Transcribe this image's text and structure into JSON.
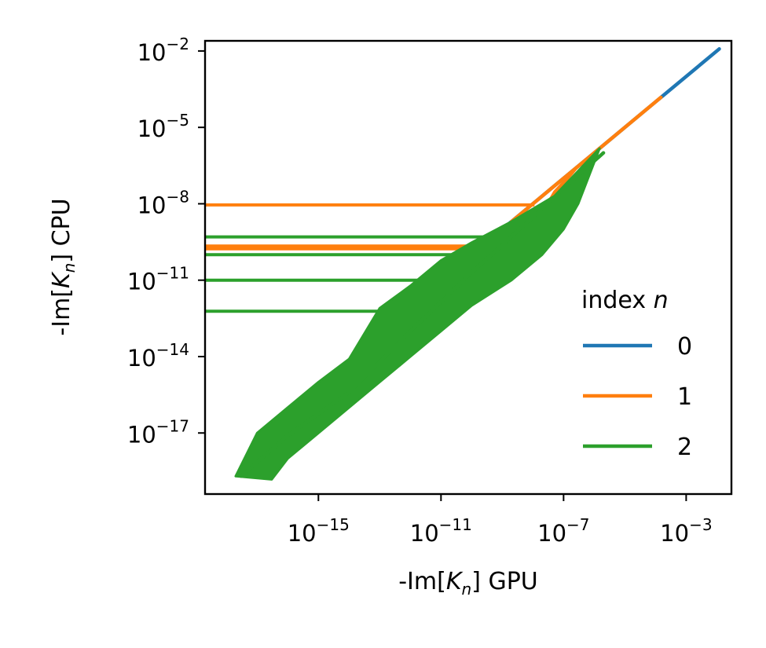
{
  "chart_data": {
    "type": "line",
    "xlabel": "-Im[K_n] GPU",
    "ylabel": "-Im[K_n] CPU",
    "x_scale": "log",
    "y_scale": "log",
    "xlim": [
      2e-19,
      0.03
    ],
    "ylim": [
      4e-20,
      0.025
    ],
    "x_ticks": [
      {
        "value": 1e-15,
        "base": "10",
        "exp": "−15"
      },
      {
        "value": 1e-11,
        "base": "10",
        "exp": "−11"
      },
      {
        "value": 1e-07,
        "base": "10",
        "exp": "−7"
      },
      {
        "value": 0.001,
        "base": "10",
        "exp": "−3"
      }
    ],
    "y_ticks": [
      {
        "value": 0.01,
        "base": "10",
        "exp": "−2"
      },
      {
        "value": 1e-05,
        "base": "10",
        "exp": "−5"
      },
      {
        "value": 1e-08,
        "base": "10",
        "exp": "−8"
      },
      {
        "value": 1e-11,
        "base": "10",
        "exp": "−11"
      },
      {
        "value": 1e-14,
        "base": "10",
        "exp": "−14"
      },
      {
        "value": 1e-17,
        "base": "10",
        "exp": "−17"
      }
    ],
    "grid": false,
    "legend": {
      "title_text": "index ",
      "title_var": "n",
      "placement": "right"
    },
    "series": [
      {
        "name": "0",
        "color": "#1f77b4",
        "points": [
          [
            2e-10,
            2e-10
          ],
          [
            3e-09,
            3e-09
          ],
          [
            4e-08,
            4e-08
          ],
          [
            5e-07,
            5e-07
          ],
          [
            6e-06,
            6e-06
          ],
          [
            0.0001,
            0.0001
          ],
          [
            0.002,
            0.002
          ],
          [
            0.012,
            0.012
          ]
        ]
      },
      {
        "name": "1",
        "color": "#ff7f0e",
        "points": [
          [
            2e-09,
            2e-09
          ],
          [
            4e-08,
            4e-08
          ],
          [
            3e-07,
            3e-07
          ],
          [
            2e-06,
            2e-06
          ],
          [
            2e-05,
            2e-05
          ],
          [
            0.00015,
            0.00015
          ]
        ],
        "plateaus": [
          {
            "y": 9e-09,
            "x_start": 2e-19,
            "x_end": 1e-08,
            "x_end_y": 1e-08
          },
          {
            "y": 2.2e-10,
            "x_start": 2e-19,
            "x_end": 3e-09,
            "x_end_y": 3e-09
          },
          {
            "y": 1.7e-10,
            "x_start": 2e-19,
            "x_end": 2e-09,
            "x_end_y": 2e-09
          }
        ],
        "band": [
          [
            2e-11,
            2e-11
          ],
          [
            1e-09,
            1e-10
          ],
          [
            1e-08,
            1e-09
          ],
          [
            5e-08,
            3e-08
          ],
          [
            3e-07,
            3e-07
          ],
          [
            1e-07,
            6e-08
          ],
          [
            1e-08,
            3e-09
          ],
          [
            1e-09,
            8e-11
          ],
          [
            1e-10,
            1e-11
          ]
        ]
      },
      {
        "name": "2",
        "color": "#2ca02c",
        "points": [
          [
            3e-18,
            2e-19
          ],
          [
            1e-16,
            8e-18
          ],
          [
            1e-14,
            4e-16
          ],
          [
            1e-12,
            1e-13
          ],
          [
            1e-10,
            2e-11
          ],
          [
            1e-08,
            3e-09
          ],
          [
            1e-07,
            4e-08
          ],
          [
            2e-06,
            1e-06
          ]
        ],
        "plateaus": [
          {
            "y": 5e-10,
            "x_start": 2e-19,
            "x_end": 4e-10,
            "x_end_y": 4e-10
          },
          {
            "y": 1e-10,
            "x_start": 2e-19,
            "x_end": 1e-10,
            "x_end_y": 1e-10
          },
          {
            "y": 1e-11,
            "x_start": 2e-19,
            "x_end": 2e-12,
            "x_end_y": 2e-12
          },
          {
            "y": 6e-13,
            "x_start": 2e-19,
            "x_end": 3e-13,
            "x_end_y": 3e-13
          }
        ],
        "band": [
          [
            2e-18,
            2e-19
          ],
          [
            3e-17,
            1.5e-19
          ],
          [
            1e-16,
            1e-18
          ],
          [
            1e-15,
            1e-17
          ],
          [
            1e-14,
            1e-16
          ],
          [
            1e-13,
            1e-15
          ],
          [
            1e-12,
            1e-14
          ],
          [
            1e-11,
            1e-13
          ],
          [
            1e-10,
            1e-12
          ],
          [
            2e-09,
            1e-11
          ],
          [
            2e-08,
            1e-10
          ],
          [
            1e-07,
            1e-09
          ],
          [
            3e-07,
            1e-08
          ],
          [
            1.5e-06,
            1.5e-06
          ],
          [
            5e-08,
            2e-08
          ],
          [
            2e-09,
            2e-09
          ],
          [
            1e-10,
            3e-10
          ],
          [
            1e-11,
            6e-11
          ],
          [
            1e-12,
            6e-12
          ],
          [
            1e-13,
            8e-13
          ],
          [
            1e-14,
            8e-15
          ],
          [
            1e-15,
            1e-15
          ],
          [
            1e-16,
            1e-16
          ],
          [
            1e-17,
            1e-17
          ]
        ]
      }
    ]
  }
}
